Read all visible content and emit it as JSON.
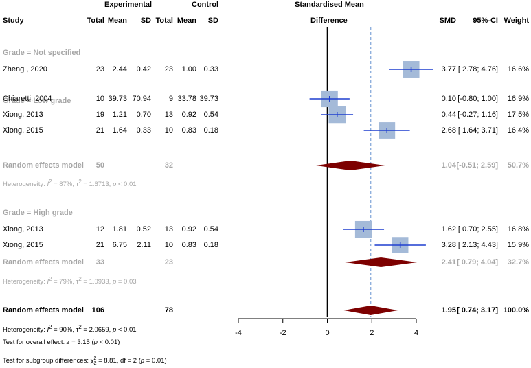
{
  "header": {
    "experimental": "Experimental",
    "control": "Control",
    "smd_title": "Standardised Mean",
    "study": "Study",
    "total_e": "Total",
    "mean_e": "Mean",
    "sd_e": "SD",
    "total_c": "Total",
    "mean_c": "Mean",
    "sd_c": "SD",
    "difference": "Difference",
    "smd": "SMD",
    "ci": "95%-CI",
    "weight": "Weight"
  },
  "groups": [
    {
      "label": "Grade = Not specified",
      "studies": [
        {
          "study": "Zheng , 2020",
          "te": "23",
          "me": "2.44",
          "sde": "0.42",
          "tc": "23",
          "mc": "1.00",
          "sdc": "0.33",
          "smd_text": "3.77",
          "ci_text": "[ 2.78; 4.76]",
          "weight": "16.6%"
        }
      ]
    },
    {
      "label": "Grade = Low grade",
      "studies": [
        {
          "study": "Chiaretti, 2004",
          "te": "10",
          "me": "39.73",
          "sde": "70.94",
          "tc": "9",
          "mc": "33.78",
          "sdc": "39.73",
          "smd_text": "0.10",
          "ci_text": "[-0.80; 1.00]",
          "weight": "16.9%"
        },
        {
          "study": "Xiong, 2013",
          "te": "19",
          "me": "1.21",
          "sde": "0.70",
          "tc": "13",
          "mc": "0.92",
          "sdc": "0.54",
          "smd_text": "0.44",
          "ci_text": "[-0.27; 1.16]",
          "weight": "17.5%"
        },
        {
          "study": "Xiong, 2015",
          "te": "21",
          "me": "1.64",
          "sde": "0.33",
          "tc": "10",
          "mc": "0.83",
          "sdc": "0.18",
          "smd_text": "2.68",
          "ci_text": "[ 1.64; 3.71]",
          "weight": "16.4%"
        }
      ],
      "re": {
        "label": "Random effects model",
        "te": "50",
        "tc": "32",
        "smd_text": "1.04",
        "ci_text": "[-0.51; 2.59]",
        "weight": "50.7%"
      },
      "het": {
        "pre": "Heterogeneity: ",
        "i": "I",
        "sup2": "2",
        "mid": " = 87%, τ",
        "sup2b": "2",
        "post": " = 1.6713, ",
        "p": "p",
        "pend": " < 0.01"
      }
    },
    {
      "label": "Grade = High grade",
      "studies": [
        {
          "study": "Xiong, 2013",
          "te": "12",
          "me": "1.81",
          "sde": "0.52",
          "tc": "13",
          "mc": "0.92",
          "sdc": "0.54",
          "smd_text": "1.62",
          "ci_text": "[ 0.70; 2.55]",
          "weight": "16.8%"
        },
        {
          "study": "Xiong, 2015",
          "te": "21",
          "me": "6.75",
          "sde": "2.11",
          "tc": "10",
          "mc": "0.83",
          "sdc": "0.18",
          "smd_text": "3.28",
          "ci_text": "[ 2.13; 4.43]",
          "weight": "15.9%"
        }
      ],
      "re": {
        "label": "Random effects model",
        "te": "33",
        "tc": "23",
        "smd_text": "2.41",
        "ci_text": "[ 0.79; 4.04]",
        "weight": "32.7%"
      },
      "het": {
        "pre": "Heterogeneity: ",
        "i": "I",
        "sup2": "2",
        "mid": " = 79%, τ",
        "sup2b": "2",
        "post": " = 1.0933, ",
        "p": "p",
        "pend": " = 0.03"
      }
    }
  ],
  "overall": {
    "label": "Random effects model",
    "te": "106",
    "tc": "78",
    "smd_text": "1.95",
    "ci_text": "[ 0.74; 3.17]",
    "weight": "100.0%",
    "het": {
      "pre": "Heterogeneity: ",
      "i": "I",
      "sup2": "2",
      "mid": " = 90%, τ",
      "sup2b": "2",
      "post": " = 2.0659, ",
      "p": "p",
      "pend": " < 0.01"
    },
    "test_effect": {
      "pre": "Test for overall effect: ",
      "z": "z",
      "mid": " = 3.15 (",
      "p": "p",
      "post": " < 0.01)"
    },
    "test_sub": {
      "pre": "Test for subgroup differences: ",
      "chi": "χ",
      "sub": "2",
      "sup": "2",
      "mid": " = 8.81, df = 2 (",
      "p": "p",
      "post": " = 0.01)"
    }
  },
  "colors": {
    "box": "#a4bad8",
    "ci_line": "#1f3fcf",
    "diamond": "#7d0000",
    "ref_line": "#8fb0dd",
    "gray": "#a6a6a6"
  },
  "chart_data": {
    "type": "forest",
    "title": "Standardised Mean Difference",
    "xlim": [
      -4,
      4
    ],
    "xticks": [
      -4,
      -2,
      0,
      2,
      4
    ],
    "null_line": 0,
    "overall_line": 1.95,
    "studies": [
      {
        "name": "Zheng , 2020",
        "group": "Not specified",
        "smd": 3.77,
        "lo": 2.78,
        "hi": 4.76,
        "weight": 16.6
      },
      {
        "name": "Chiaretti, 2004",
        "group": "Low grade",
        "smd": 0.1,
        "lo": -0.8,
        "hi": 1.0,
        "weight": 16.9
      },
      {
        "name": "Xiong, 2013",
        "group": "Low grade",
        "smd": 0.44,
        "lo": -0.27,
        "hi": 1.16,
        "weight": 17.5
      },
      {
        "name": "Xiong, 2015",
        "group": "Low grade",
        "smd": 2.68,
        "lo": 1.64,
        "hi": 3.71,
        "weight": 16.4
      },
      {
        "name": "Xiong, 2013",
        "group": "High grade",
        "smd": 1.62,
        "lo": 0.7,
        "hi": 2.55,
        "weight": 16.8
      },
      {
        "name": "Xiong, 2015",
        "group": "High grade",
        "smd": 3.28,
        "lo": 2.13,
        "hi": 4.43,
        "weight": 15.9
      }
    ],
    "summaries": [
      {
        "name": "Random effects model",
        "group": "Low grade",
        "smd": 1.04,
        "lo": -0.51,
        "hi": 2.59,
        "weight": 50.7
      },
      {
        "name": "Random effects model",
        "group": "High grade",
        "smd": 2.41,
        "lo": 0.79,
        "hi": 4.04,
        "weight": 32.7
      },
      {
        "name": "Random effects model",
        "group": "Overall",
        "smd": 1.95,
        "lo": 0.74,
        "hi": 3.17,
        "weight": 100.0
      }
    ]
  }
}
